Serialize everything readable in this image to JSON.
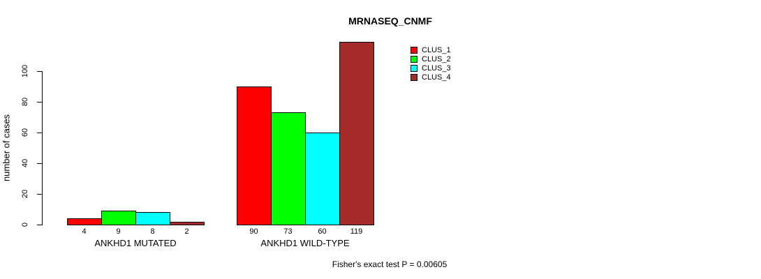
{
  "title": "MRNASEQ_CNMF",
  "footer": "Fisher's exact test P = 0.00605",
  "chart_data": {
    "type": "bar",
    "title": "MRNASEQ_CNMF",
    "xlabel": "",
    "ylabel": "number of cases",
    "ylim": [
      0,
      100
    ],
    "yticks": [
      0,
      20,
      40,
      60,
      80,
      100
    ],
    "categories": [
      "ANKHD1 MUTATED",
      "ANKHD1 WILD-TYPE"
    ],
    "series": [
      {
        "name": "CLUS_1",
        "color": "#ff0000",
        "values": [
          4,
          90
        ]
      },
      {
        "name": "CLUS_2",
        "color": "#00ff00",
        "values": [
          9,
          73
        ]
      },
      {
        "name": "CLUS_3",
        "color": "#00ffff",
        "values": [
          8,
          60
        ]
      },
      {
        "name": "CLUS_4",
        "color": "#a52a2a",
        "values": [
          2,
          119
        ]
      }
    ],
    "bar_value_labels": [
      [
        "4",
        "9",
        "8",
        "2"
      ],
      [
        "90",
        "73",
        "60",
        "119"
      ]
    ],
    "legend": [
      "CLUS_1",
      "CLUS_2",
      "CLUS_3",
      "CLUS_4"
    ],
    "legend_position": "top-right",
    "grid": false,
    "annotation": "Fisher's exact test P = 0.00605",
    "colors": {
      "CLUS_1": "#ff0000",
      "CLUS_2": "#00ff00",
      "CLUS_3": "#00ffff",
      "CLUS_4": "#a52a2a",
      "text": "#000000",
      "background": "#ffffff"
    }
  }
}
